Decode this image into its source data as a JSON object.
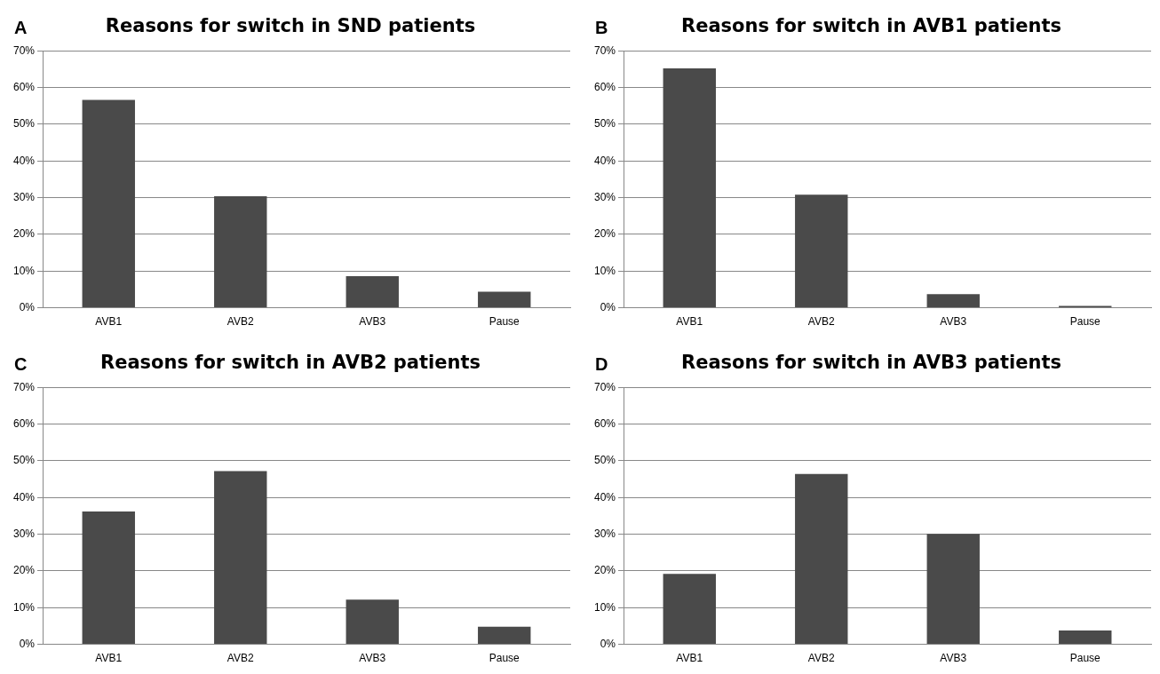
{
  "chart_data": [
    {
      "type": "bar",
      "title": "Reasons for switch in SND patients",
      "annotations": [
        "A"
      ],
      "categories": [
        "AVB1",
        "AVB2",
        "AVB3",
        "Pause"
      ],
      "values": [
        56.6,
        30.4,
        8.6,
        4.4
      ],
      "color": "#4a4a4a",
      "ylim": [
        0,
        70
      ],
      "yticks": [
        {
          "value": 0,
          "label": "0%"
        },
        {
          "value": 10,
          "label": "10%"
        },
        {
          "value": 20,
          "label": "20%"
        },
        {
          "value": 30,
          "label": "30%"
        },
        {
          "value": 40,
          "label": "40%"
        },
        {
          "value": 50,
          "label": "50%"
        },
        {
          "value": 60,
          "label": "60%"
        },
        {
          "value": 70,
          "label": "70%"
        }
      ],
      "grid": "y",
      "legend": false
    },
    {
      "type": "bar",
      "title": "Reasons for switch in AVB1 patients",
      "annotations": [
        "B"
      ],
      "categories": [
        "AVB1",
        "AVB2",
        "AVB3",
        "Pause"
      ],
      "values": [
        65.2,
        30.8,
        3.7,
        0.5
      ],
      "color": "#4a4a4a",
      "ylim": [
        0,
        70
      ],
      "yticks": [
        {
          "value": 0,
          "label": "0%"
        },
        {
          "value": 10,
          "label": "10%"
        },
        {
          "value": 20,
          "label": "20%"
        },
        {
          "value": 30,
          "label": "30%"
        },
        {
          "value": 40,
          "label": "40%"
        },
        {
          "value": 50,
          "label": "50%"
        },
        {
          "value": 60,
          "label": "60%"
        },
        {
          "value": 70,
          "label": "70%"
        }
      ],
      "grid": "y",
      "legend": false
    },
    {
      "type": "bar",
      "title": "Reasons for switch in AVB2 patients",
      "annotations": [
        "C"
      ],
      "categories": [
        "AVB1",
        "AVB2",
        "AVB3",
        "Pause"
      ],
      "values": [
        36.2,
        47.2,
        12.2,
        4.8
      ],
      "color": "#4a4a4a",
      "ylim": [
        0,
        70
      ],
      "yticks": [
        {
          "value": 0,
          "label": "0%"
        },
        {
          "value": 10,
          "label": "10%"
        },
        {
          "value": 20,
          "label": "20%"
        },
        {
          "value": 30,
          "label": "30%"
        },
        {
          "value": 40,
          "label": "40%"
        },
        {
          "value": 50,
          "label": "50%"
        },
        {
          "value": 60,
          "label": "60%"
        },
        {
          "value": 70,
          "label": "70%"
        }
      ],
      "grid": "y",
      "legend": false
    },
    {
      "type": "bar",
      "title": "Reasons for switch in AVB3 patients",
      "annotations": [
        "D"
      ],
      "categories": [
        "AVB1",
        "AVB2",
        "AVB3",
        "Pause"
      ],
      "values": [
        19.2,
        46.4,
        30.1,
        3.8
      ],
      "color": "#4a4a4a",
      "ylim": [
        0,
        70
      ],
      "yticks": [
        {
          "value": 0,
          "label": "0%"
        },
        {
          "value": 10,
          "label": "10%"
        },
        {
          "value": 20,
          "label": "20%"
        },
        {
          "value": 30,
          "label": "30%"
        },
        {
          "value": 40,
          "label": "40%"
        },
        {
          "value": 50,
          "label": "50%"
        },
        {
          "value": 60,
          "label": "60%"
        },
        {
          "value": 70,
          "label": "70%"
        }
      ],
      "grid": "y",
      "legend": false
    }
  ]
}
